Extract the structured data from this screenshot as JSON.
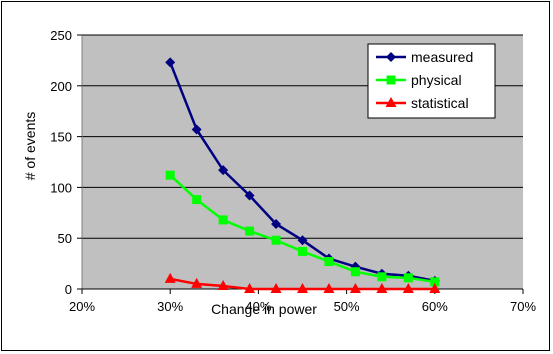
{
  "chart_data": {
    "type": "line",
    "title": "",
    "xlabel": "Change in power",
    "ylabel": "# of events",
    "xlim": [
      0.2,
      0.7
    ],
    "ylim": [
      0,
      250
    ],
    "x_ticks": [
      0.2,
      0.3,
      0.4,
      0.5,
      0.6,
      0.7
    ],
    "x_tick_labels": [
      "20%",
      "30%",
      "40%",
      "50%",
      "60%",
      "70%"
    ],
    "y_ticks": [
      0,
      50,
      100,
      150,
      200,
      250
    ],
    "y_tick_labels": [
      "0",
      "50",
      "100",
      "150",
      "200",
      "250"
    ],
    "grid": "horizontal",
    "plot_background": "#c0c0c0",
    "legend_position": "top-right",
    "x": [
      0.3,
      0.33,
      0.36,
      0.39,
      0.42,
      0.45,
      0.48,
      0.51,
      0.54,
      0.57,
      0.6
    ],
    "series": [
      {
        "name": "measured",
        "color": "#000080",
        "marker": "diamond",
        "values": [
          223,
          157,
          117,
          92,
          64,
          48,
          30,
          22,
          15,
          13,
          8
        ]
      },
      {
        "name": "physical",
        "color": "#00ff00",
        "marker": "square",
        "values": [
          112,
          88,
          68,
          57,
          48,
          37,
          27,
          17,
          12,
          11,
          7
        ]
      },
      {
        "name": "statistical",
        "color": "#ff0000",
        "marker": "triangle",
        "values": [
          10,
          5,
          3,
          0,
          0,
          0,
          0,
          0,
          0,
          0,
          0
        ]
      }
    ]
  }
}
